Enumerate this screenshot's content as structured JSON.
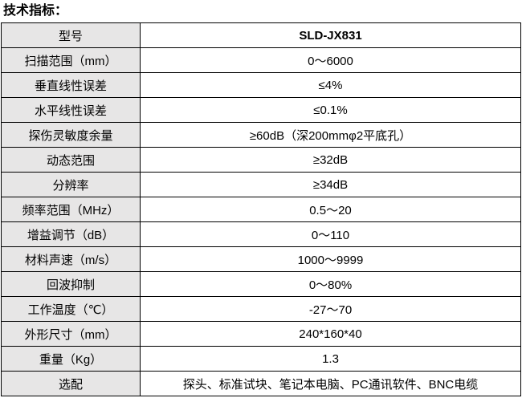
{
  "title": "技术指标：",
  "table": {
    "rows": [
      [
        "型号",
        "SLD-JX831"
      ],
      [
        "扫描范围（mm）",
        "0～6000"
      ],
      [
        "垂直线性误差",
        "≤4%"
      ],
      [
        "水平线性误差",
        "≤0.1%"
      ],
      [
        "探伤灵敏度余量",
        "≥60dB（深200mmφ2平底孔）"
      ],
      [
        "动态范围",
        "≥32dB"
      ],
      [
        "分辨率",
        "≥34dB"
      ],
      [
        "频率范围（MHz）",
        "0.5～20"
      ],
      [
        "增益调节（dB）",
        "0～110"
      ],
      [
        "材料声速（m/s）",
        "1000～9999"
      ],
      [
        "回波抑制",
        "0～80%"
      ],
      [
        "工作温度（℃）",
        "-27～70"
      ],
      [
        "外形尺寸（mm）",
        "240*160*40"
      ],
      [
        "重量（Kg）",
        "1.3"
      ],
      [
        "选配",
        "探头、标准试块、笔记本电脑、PC通讯软件、BNC电缆"
      ]
    ]
  }
}
